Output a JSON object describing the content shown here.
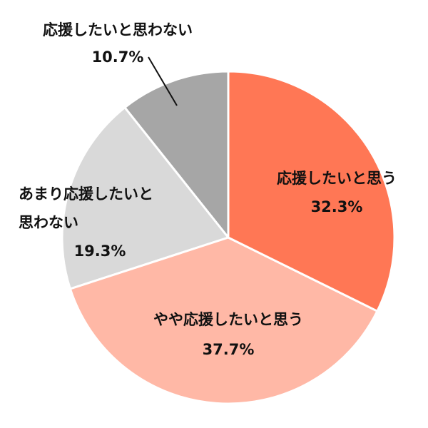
{
  "chart_data": {
    "type": "pie",
    "categories": [
      "応援したいと思う",
      "やや応援したいと思う",
      "あまり応援したいと思わない",
      "応援したいと思わない"
    ],
    "values": [
      32.3,
      37.7,
      19.3,
      10.7
    ],
    "value_labels": [
      "32.3%",
      "37.7%",
      "19.3%",
      "10.7%"
    ],
    "colors": [
      "#ff7755",
      "#ffb8a6",
      "#d9d9d9",
      "#a6a6a6"
    ]
  }
}
